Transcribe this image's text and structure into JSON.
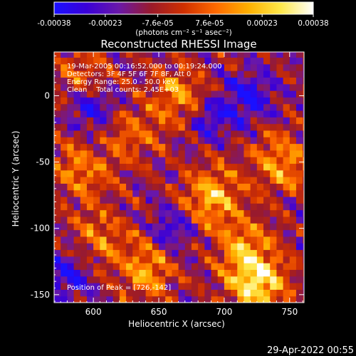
{
  "colorbar": {
    "tick_labels": [
      "-0.00038",
      "-0.00023",
      "-7.6e-05",
      "7.6e-05",
      "0.00023",
      "0.00038"
    ],
    "tick_values": [
      -0.00038,
      -0.00023,
      -7.6e-05,
      7.6e-05,
      0.00023,
      0.00038
    ],
    "range": [
      -0.00038,
      0.00038
    ],
    "units_label": "(photons cm⁻² s⁻¹ asec⁻²)",
    "colormap": [
      "#1a10ff",
      "#3a00d8",
      "#6a18a8",
      "#9a1a2a",
      "#d03000",
      "#ff6a00",
      "#ffb000",
      "#ffe84a",
      "#ffffff"
    ]
  },
  "chart_data": {
    "type": "heatmap",
    "title": "Reconstructed RHESSI Image",
    "xlabel": "Heliocentric X (arcsec)",
    "ylabel": "Heliocentric Y (arcsec)",
    "xlim": [
      570,
      761
    ],
    "ylim": [
      -156,
      33
    ],
    "xticks": [
      600,
      650,
      700,
      750
    ],
    "yticks": [
      0,
      -50,
      -100,
      -150
    ],
    "grid": false,
    "annotations": [
      "19-Mar-2005 00:16:52.000 to 00:19:24.000",
      "Detectors: 3F 4F 5F 6F 7F 8F, Att 0",
      "Energy Range: 25.0 - 50.0 keV",
      "Clean    Total counts: 2.45E+03"
    ],
    "peak_label": "Position of Peak = [726,-142]",
    "peak": [
      726,
      -142
    ],
    "value_range": [
      -0.00038,
      0.00038
    ],
    "sources": [
      {
        "x": 726,
        "y": -142,
        "peak": 0.00038
      },
      {
        "x": 690,
        "y": -75,
        "peak": 0.00032
      },
      {
        "x": 665,
        "y": 0,
        "peak": 0.00025
      },
      {
        "x": 745,
        "y": -50,
        "peak": 0.00026
      },
      {
        "x": 590,
        "y": -55,
        "peak": 0.00022
      },
      {
        "x": 640,
        "y": -130,
        "peak": 0.00026
      },
      {
        "x": 605,
        "y": -105,
        "peak": 0.00018
      },
      {
        "x": 630,
        "y": -30,
        "peak": 0.00016
      },
      {
        "x": 715,
        "y": -115,
        "peak": 0.00024
      },
      {
        "x": 590,
        "y": 20,
        "peak": 0.00015
      }
    ],
    "negative_regions": [
      {
        "x": 600,
        "y": -10
      },
      {
        "x": 720,
        "y": 0
      },
      {
        "x": 690,
        "y": -15
      },
      {
        "x": 660,
        "y": -100
      },
      {
        "x": 580,
        "y": -135
      }
    ]
  },
  "timestamp": "29-Apr-2022 00:55"
}
